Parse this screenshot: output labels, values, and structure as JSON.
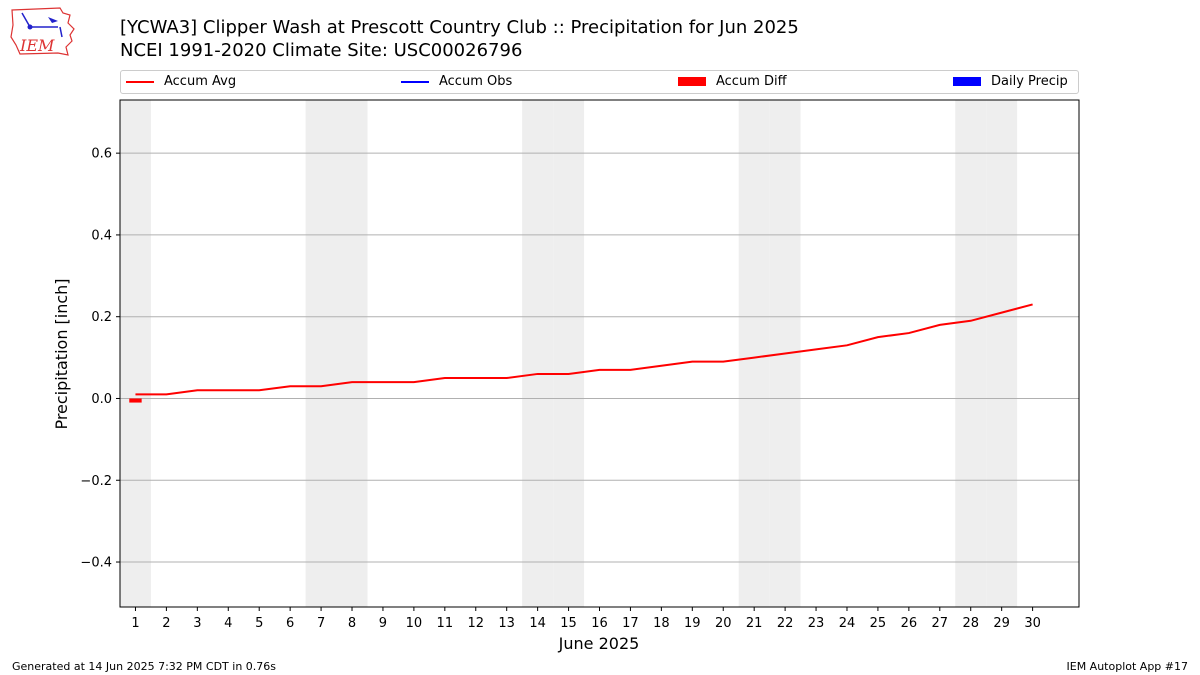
{
  "title": "[YCWA3] Clipper Wash at Prescott Country Club :: Precipitation for Jun 2025",
  "subtitle": "NCEI 1991-2020 Climate Site: USC00026796",
  "logo_text": "IEM",
  "footer_left": "Generated at 14 Jun 2025 7:32 PM CDT in 0.76s",
  "footer_right": "IEM Autoplot App #17",
  "legend": [
    {
      "label": "Accum Avg",
      "kind": "line",
      "color": "#ff0000"
    },
    {
      "label": "Accum Obs",
      "kind": "line",
      "color": "#0000ff"
    },
    {
      "label": "Accum Diff",
      "kind": "patch",
      "color": "#ff0000"
    },
    {
      "label": "Daily Precip",
      "kind": "patch",
      "color": "#0000ff"
    }
  ],
  "chart_data": {
    "type": "line",
    "xlabel": "June 2025",
    "ylabel": "Precipitation [inch]",
    "xlim": [
      0.5,
      31.5
    ],
    "ylim": [
      -0.51,
      0.73
    ],
    "x_ticks": [
      1,
      2,
      3,
      4,
      5,
      6,
      7,
      8,
      9,
      10,
      11,
      12,
      13,
      14,
      15,
      16,
      17,
      18,
      19,
      20,
      21,
      22,
      23,
      24,
      25,
      26,
      27,
      28,
      29,
      30
    ],
    "y_ticks": [
      -0.4,
      -0.2,
      0.0,
      0.2,
      0.4,
      0.6
    ],
    "y_tick_labels": [
      "−0.4",
      "−0.2",
      "0.0",
      "0.2",
      "0.4",
      "0.6"
    ],
    "grid": "y",
    "weekend_shading_days": [
      1,
      7,
      8,
      14,
      15,
      21,
      22,
      28,
      29
    ],
    "weekend_shading_color": "#eeeeee",
    "series": [
      {
        "name": "Accum Avg",
        "color": "#ff0000",
        "x": [
          1,
          2,
          3,
          4,
          5,
          6,
          7,
          8,
          9,
          10,
          11,
          12,
          13,
          14,
          15,
          16,
          17,
          18,
          19,
          20,
          21,
          22,
          23,
          24,
          25,
          26,
          27,
          28,
          29,
          30
        ],
        "values": [
          0.01,
          0.01,
          0.02,
          0.02,
          0.02,
          0.03,
          0.03,
          0.04,
          0.04,
          0.04,
          0.05,
          0.05,
          0.05,
          0.06,
          0.06,
          0.07,
          0.07,
          0.08,
          0.09,
          0.09,
          0.1,
          0.11,
          0.12,
          0.13,
          0.15,
          0.16,
          0.18,
          0.19,
          0.21,
          0.23
        ]
      },
      {
        "name": "Accum Diff",
        "color": "#ff0000",
        "type": "bar",
        "x": [
          1
        ],
        "values": [
          -0.01
        ]
      }
    ]
  }
}
